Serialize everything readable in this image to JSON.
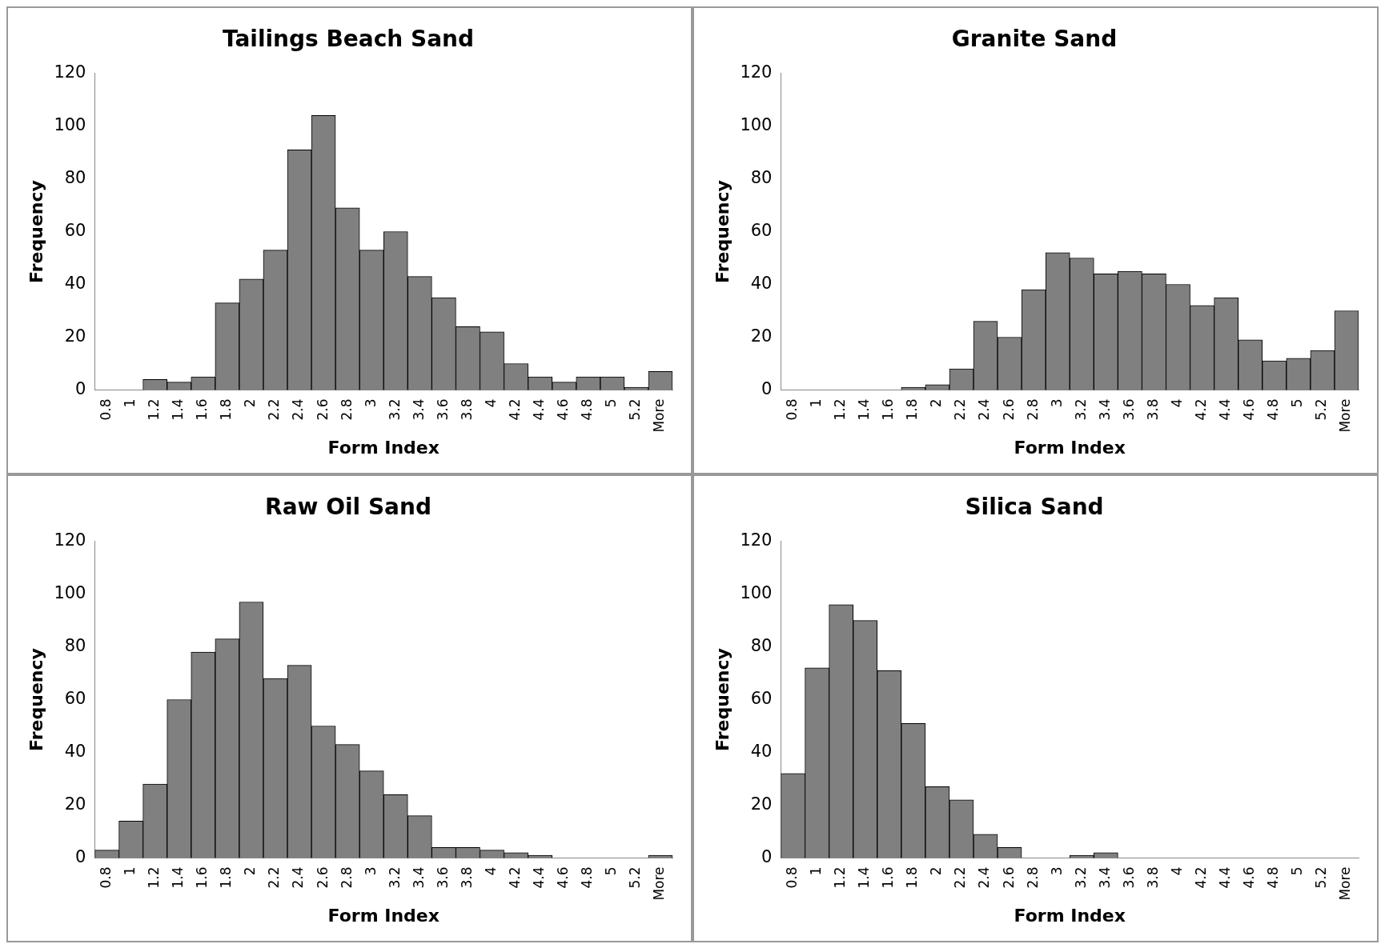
{
  "chart_data": [
    {
      "type": "bar",
      "title": "Tailings Beach Sand",
      "xlabel": "Form Index",
      "ylabel": "Frequency",
      "categories": [
        "0.8",
        "1",
        "1.2",
        "1.4",
        "1.6",
        "1.8",
        "2",
        "2.2",
        "2.4",
        "2.6",
        "2.8",
        "3",
        "3.2",
        "3.4",
        "3.6",
        "3.8",
        "4",
        "4.2",
        "4.4",
        "4.6",
        "4.8",
        "5",
        "5.2",
        "More"
      ],
      "color": "#808080",
      "values": [
        0,
        0,
        4,
        3,
        5,
        33,
        42,
        53,
        91,
        104,
        69,
        53,
        60,
        43,
        35,
        24,
        22,
        10,
        5,
        3,
        5,
        5,
        1,
        7
      ],
      "ylim": [
        0,
        120
      ],
      "yticks": [
        0,
        20,
        40,
        60,
        80,
        100,
        120
      ],
      "grid": false,
      "legend": false
    },
    {
      "type": "bar",
      "title": "Granite Sand",
      "xlabel": "Form Index",
      "ylabel": "Frequency",
      "categories": [
        "0.8",
        "1",
        "1.2",
        "1.4",
        "1.6",
        "1.8",
        "2",
        "2.2",
        "2.4",
        "2.6",
        "2.8",
        "3",
        "3.2",
        "3.4",
        "3.6",
        "3.8",
        "4",
        "4.2",
        "4.4",
        "4.6",
        "4.8",
        "5",
        "5.2",
        "More"
      ],
      "color": "#808080",
      "values": [
        0,
        0,
        0,
        0,
        0,
        1,
        2,
        8,
        26,
        20,
        38,
        52,
        50,
        44,
        45,
        44,
        40,
        32,
        35,
        19,
        11,
        12,
        15,
        30
      ],
      "ylim": [
        0,
        120
      ],
      "yticks": [
        0,
        20,
        40,
        60,
        80,
        100,
        120
      ],
      "grid": false,
      "legend": false
    },
    {
      "type": "bar",
      "title": "Raw Oil Sand",
      "xlabel": "Form Index",
      "ylabel": "Frequency",
      "categories": [
        "0.8",
        "1",
        "1.2",
        "1.4",
        "1.6",
        "1.8",
        "2",
        "2.2",
        "2.4",
        "2.6",
        "2.8",
        "3",
        "3.2",
        "3.4",
        "3.6",
        "3.8",
        "4",
        "4.2",
        "4.4",
        "4.6",
        "4.8",
        "5",
        "5.2",
        "More"
      ],
      "color": "#808080",
      "values": [
        3,
        14,
        28,
        60,
        78,
        83,
        97,
        68,
        73,
        50,
        43,
        33,
        24,
        16,
        4,
        4,
        3,
        2,
        1,
        0,
        0,
        0,
        0,
        1
      ],
      "ylim": [
        0,
        120
      ],
      "yticks": [
        0,
        20,
        40,
        60,
        80,
        100,
        120
      ],
      "grid": false,
      "legend": false
    },
    {
      "type": "bar",
      "title": "Silica Sand",
      "xlabel": "Form Index",
      "ylabel": "Frequency",
      "categories": [
        "0.8",
        "1",
        "1.2",
        "1.4",
        "1.6",
        "1.8",
        "2",
        "2.2",
        "2.4",
        "2.6",
        "2.8",
        "3",
        "3.2",
        "3.4",
        "3.6",
        "3.8",
        "4",
        "4.2",
        "4.4",
        "4.6",
        "4.8",
        "5",
        "5.2",
        "More"
      ],
      "color": "#808080",
      "values": [
        32,
        72,
        96,
        90,
        71,
        51,
        27,
        22,
        9,
        4,
        0,
        0,
        1,
        2,
        0,
        0,
        0,
        0,
        0,
        0,
        0,
        0,
        0,
        0
      ],
      "ylim": [
        0,
        120
      ],
      "yticks": [
        0,
        20,
        40,
        60,
        80,
        100,
        120
      ],
      "grid": false,
      "legend": false
    }
  ]
}
